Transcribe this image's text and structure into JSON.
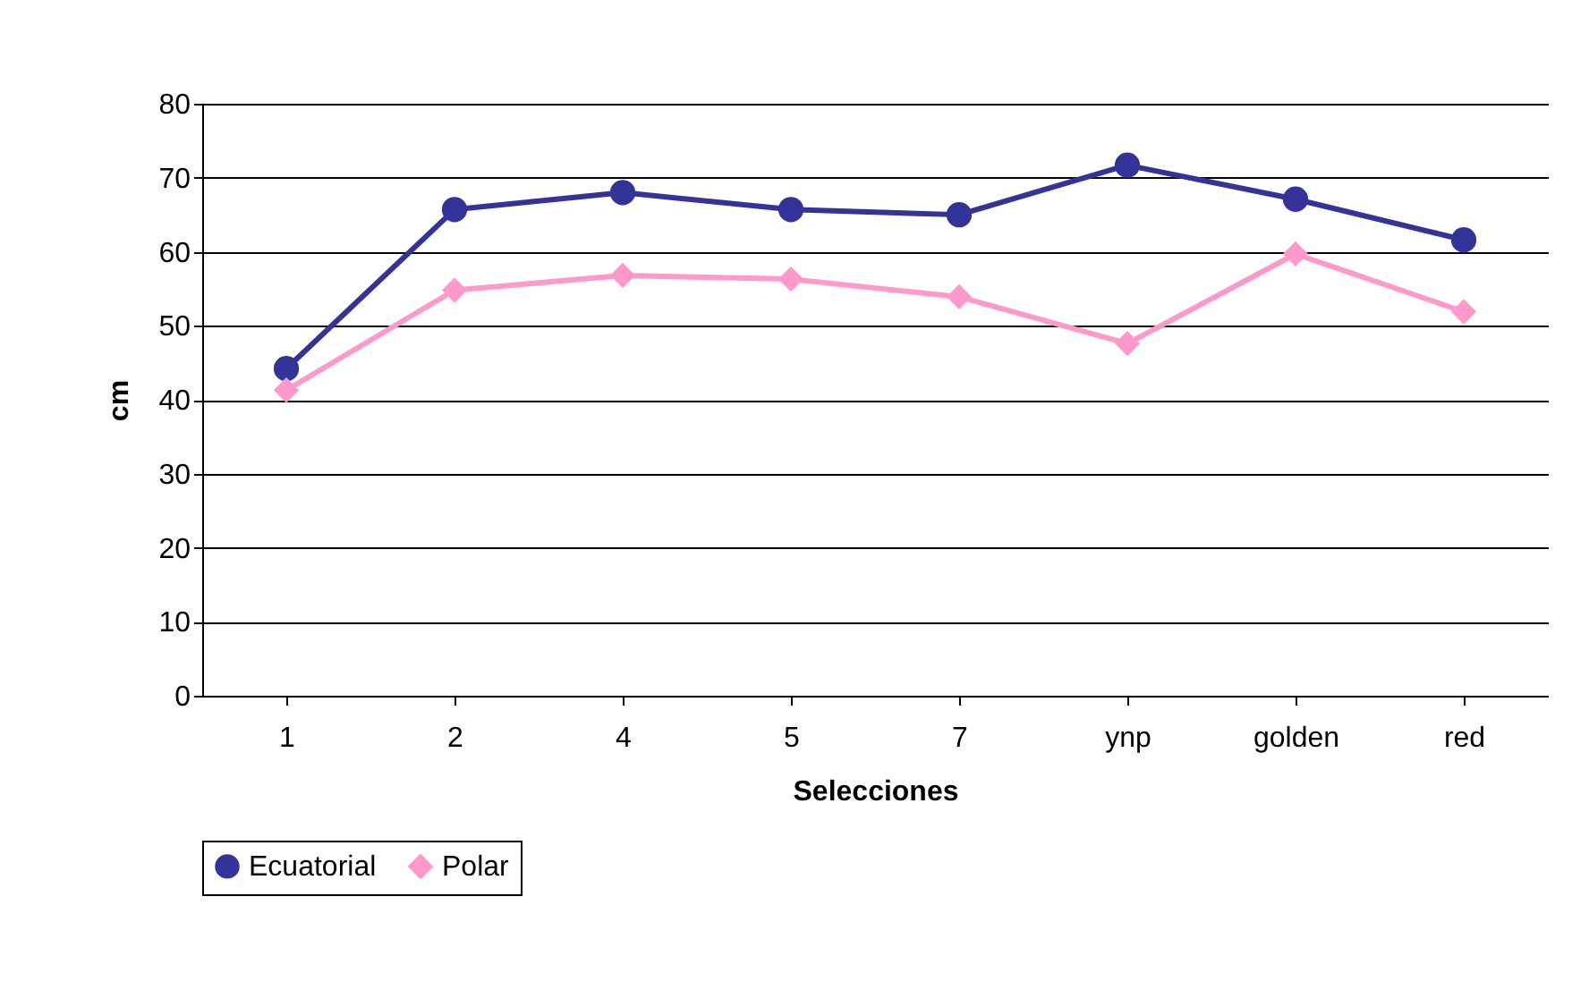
{
  "chart_data": {
    "type": "line",
    "xlabel": "Selecciones",
    "ylabel": "cm",
    "categories": [
      "1",
      "2",
      "4",
      "5",
      "7",
      "ynp",
      "golden",
      "red"
    ],
    "series": [
      {
        "name": "Ecuatorial",
        "color": "#333399",
        "marker": "circle",
        "values": [
          44.2,
          65.7,
          68.0,
          65.7,
          65.0,
          71.7,
          67.1,
          61.6
        ]
      },
      {
        "name": "Polar",
        "color": "#ff99cc",
        "marker": "diamond",
        "values": [
          41.3,
          54.8,
          56.8,
          56.3,
          53.9,
          47.6,
          59.7,
          51.9
        ]
      }
    ],
    "ylim": [
      0,
      80
    ],
    "yticks": [
      0,
      10,
      20,
      30,
      40,
      50,
      60,
      70,
      80
    ],
    "grid": "y",
    "legend": "bottom"
  }
}
